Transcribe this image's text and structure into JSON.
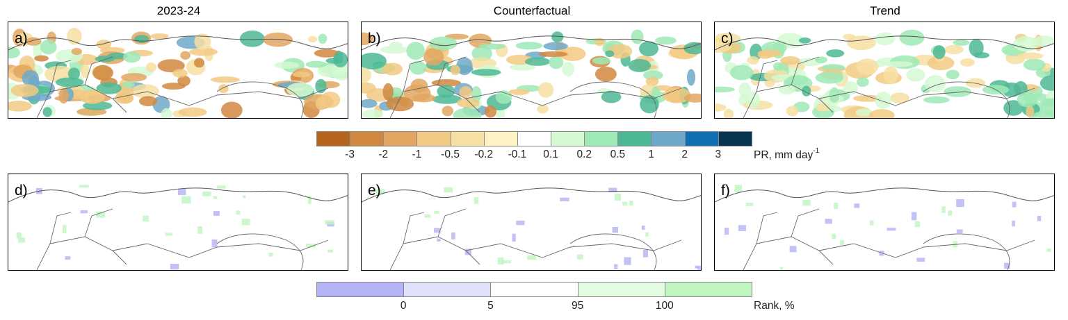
{
  "column_titles": [
    "2023-24",
    "Counterfactual",
    "Trend"
  ],
  "panels": [
    {
      "label": "a)"
    },
    {
      "label": "b)"
    },
    {
      "label": "c)"
    },
    {
      "label": "d)"
    },
    {
      "label": "e)"
    },
    {
      "label": "f)"
    }
  ],
  "colorbar_top": {
    "title_main": "PR, mm day",
    "title_sup": "-1",
    "colors": [
      "#b5651d",
      "#d08840",
      "#e2a660",
      "#f2c983",
      "#f6dfa2",
      "#fff3c4",
      "#ffffff",
      "#d4f9d2",
      "#9fe9b6",
      "#4db895",
      "#6ea8c9",
      "#0f6fb0",
      "#07354f"
    ],
    "ticks": [
      "-3",
      "-2",
      "-1",
      "-0.5",
      "-0.2",
      "-0.1",
      "0.1",
      "0.2",
      "0.5",
      "1",
      "2",
      "3"
    ]
  },
  "colorbar_bottom": {
    "title": "Rank, %",
    "colors": [
      "#b3b3f5",
      "#e0e0fa",
      "#ffffff",
      "#e3fbe3",
      "#bff5bf"
    ],
    "ticks": [
      "0",
      "5",
      "95",
      "100"
    ]
  }
}
